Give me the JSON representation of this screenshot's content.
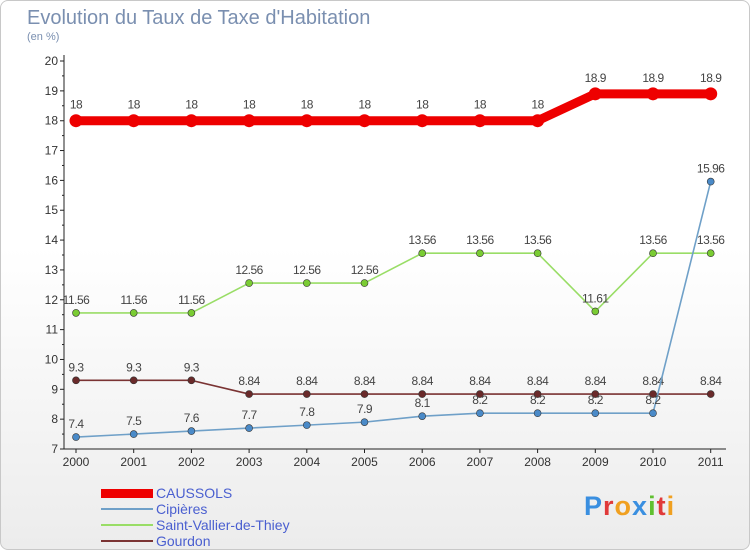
{
  "chart_data": {
    "type": "line",
    "title": "Evolution du Taux de Taxe d'Habitation",
    "subtitle": "(en %)",
    "categories": [
      "2000",
      "2001",
      "2002",
      "2003",
      "2004",
      "2005",
      "2006",
      "2007",
      "2008",
      "2009",
      "2010",
      "2011"
    ],
    "ylim": [
      7,
      20
    ],
    "yticks": [
      7,
      8,
      9,
      10,
      11,
      12,
      13,
      14,
      15,
      16,
      17,
      18,
      19,
      20
    ],
    "grid": false,
    "legend_position": "bottom-left",
    "series": [
      {
        "name": "CAUSSOLS",
        "color": "#ff0000",
        "line_color": "#ee0000",
        "values": [
          18,
          18,
          18,
          18,
          18,
          18,
          18,
          18,
          18,
          18.9,
          18.9,
          18.9
        ],
        "labels": [
          "18",
          "18",
          "18",
          "18",
          "18",
          "18",
          "18",
          "18",
          "18",
          "18.9",
          "18.9",
          "18.9"
        ]
      },
      {
        "name": "Cipières",
        "color": "#6fa0c8",
        "line_color": "#6fa0c8",
        "marker_color": "#4a8ac8",
        "values": [
          7.4,
          7.5,
          7.6,
          7.7,
          7.8,
          7.9,
          8.1,
          8.2,
          8.2,
          8.2,
          8.2,
          15.96
        ],
        "labels": [
          "7.4",
          "7.5",
          "7.6",
          "7.7",
          "7.8",
          "7.9",
          "8.1",
          "8.2",
          "8.2",
          "8.2",
          "8.2",
          "15.96"
        ]
      },
      {
        "name": "Saint-Vallier-de-Thiey",
        "color": "#99dd66",
        "line_color": "#99dd66",
        "marker_color": "#7acc33",
        "values": [
          11.56,
          11.56,
          11.56,
          12.56,
          12.56,
          12.56,
          13.56,
          13.56,
          13.56,
          11.61,
          13.56,
          13.56
        ],
        "labels": [
          "11.56",
          "11.56",
          "11.56",
          "12.56",
          "12.56",
          "12.56",
          "13.56",
          "13.56",
          "13.56",
          "11.61",
          "13.56",
          "13.56"
        ]
      },
      {
        "name": "Gourdon",
        "color": "#7a3333",
        "line_color": "#7a3333",
        "marker_color": "#6a2a2a",
        "values": [
          9.3,
          9.3,
          9.3,
          8.84,
          8.84,
          8.84,
          8.84,
          8.84,
          8.84,
          8.84,
          8.84,
          8.84
        ],
        "labels": [
          "9.3",
          "9.3",
          "9.3",
          "8.84",
          "8.84",
          "8.84",
          "8.84",
          "8.84",
          "8.84",
          "8.84",
          "8.84",
          "8.84"
        ]
      }
    ]
  },
  "logo": {
    "letters": [
      "P",
      "r",
      "o",
      "x",
      "i",
      "t",
      "i"
    ],
    "colors": [
      "#3a8fe0",
      "#e03a3a",
      "#f0a020",
      "#3a8fe0",
      "#60c030",
      "#e03a3a",
      "#f0a020"
    ]
  }
}
